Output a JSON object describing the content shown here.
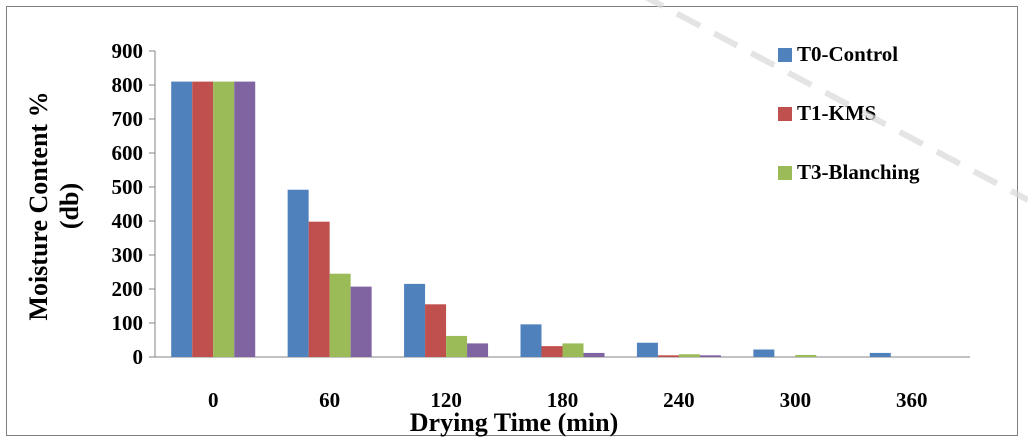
{
  "chart_data": {
    "type": "bar",
    "categories": [
      "0",
      "60",
      "120",
      "180",
      "240",
      "300",
      "360"
    ],
    "series": [
      {
        "name": "T0-Control",
        "color": "#4f81bd",
        "values": [
          810,
          492,
          215,
          96,
          42,
          22,
          12
        ]
      },
      {
        "name": "T1-KMS",
        "color": "#c0504d",
        "values": [
          810,
          398,
          155,
          32,
          5,
          0,
          0
        ]
      },
      {
        "name": "T3-Blanching",
        "color": "#9bbb59",
        "values": [
          810,
          245,
          62,
          40,
          8,
          6,
          0
        ]
      },
      {
        "name": "",
        "color": "#8064a2",
        "values": [
          810,
          207,
          40,
          12,
          5,
          0,
          0
        ]
      }
    ],
    "ylim": [
      0,
      900
    ],
    "yticks": [
      "0",
      "100",
      "200",
      "300",
      "400",
      "500",
      "600",
      "700",
      "800",
      "900"
    ],
    "xlabel": "Drying Time (min)",
    "ylabel_lines": [
      "Moisture Content %",
      "(db)"
    ],
    "grid": false,
    "legend_position": "top-right"
  }
}
